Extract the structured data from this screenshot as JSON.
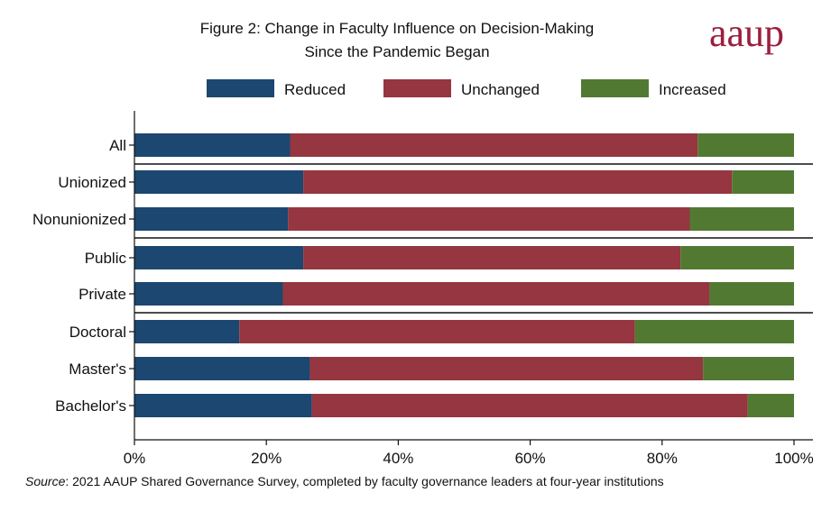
{
  "figure": {
    "title_line_1": "Figure 2: Change in Faculty Influence on Decision-Making",
    "title_line_2": "Since the Pandemic Began",
    "logo_text": "aaup",
    "source_lead": "Source",
    "source_text": ": 2021 AAUP Shared Governance Survey, completed by faculty governance leaders at four-year institutions"
  },
  "chart_data": {
    "type": "bar",
    "orientation": "horizontal",
    "stacked": true,
    "categories": [
      "All",
      "Unionized",
      "Nonunionized",
      "Public",
      "Private",
      "Doctoral",
      "Master's",
      "Bachelor's"
    ],
    "groups": [
      [
        "All"
      ],
      [
        "Unionized",
        "Nonunionized"
      ],
      [
        "Public",
        "Private"
      ],
      [
        "Doctoral",
        "Master's",
        "Bachelor's"
      ]
    ],
    "series": [
      {
        "name": "Reduced",
        "color": "#1c4770",
        "values": [
          23.6,
          25.6,
          23.3,
          25.6,
          22.5,
          15.9,
          26.6,
          26.9
        ]
      },
      {
        "name": "Unchanged",
        "color": "#953640",
        "values": [
          61.8,
          65.0,
          60.9,
          57.2,
          64.7,
          60.0,
          59.6,
          66.1
        ]
      },
      {
        "name": "Increased",
        "color": "#527932",
        "values": [
          14.6,
          9.4,
          15.8,
          17.2,
          12.8,
          24.1,
          13.8,
          7.0
        ]
      }
    ],
    "xlim": [
      0,
      100
    ],
    "xticks": [
      "0%",
      "20%",
      "40%",
      "60%",
      "80%",
      "100%"
    ],
    "xtick_values": [
      0,
      20,
      40,
      60,
      80,
      100
    ],
    "legend_position": "top",
    "grid": false
  }
}
